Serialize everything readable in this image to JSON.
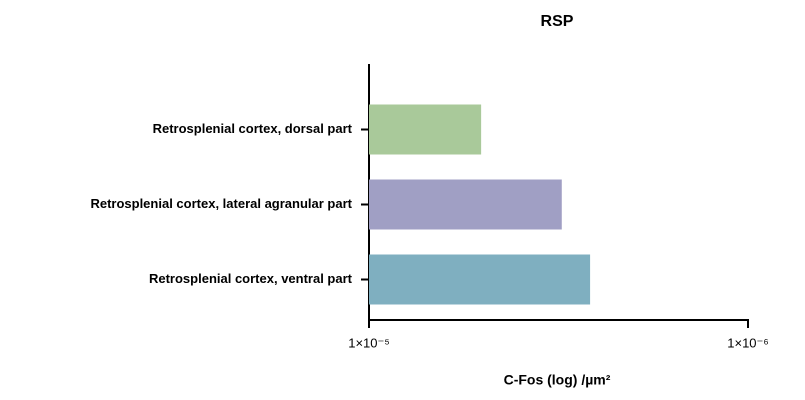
{
  "chart_data": {
    "type": "bar",
    "orientation": "horizontal",
    "title": "RSP",
    "xlabel": "C-Fos (log) /µm²",
    "categories": [
      "Retrosplenial cortex, dorsal part",
      "Retrosplenial cortex, lateral agranular part",
      "Retrosplenial cortex, ventral part"
    ],
    "values": [
      5.06e-06,
      3.1e-06,
      2.61e-06
    ],
    "colors": [
      "#a9c99a",
      "#a09fc4",
      "#7fafc0"
    ],
    "xscale": "log",
    "xlim": [
      1e-05,
      1e-06
    ],
    "xticks": [
      {
        "value": 1e-05,
        "label": "1×10⁻⁵"
      },
      {
        "value": 1e-06,
        "label": "1×10⁻⁶"
      }
    ]
  }
}
